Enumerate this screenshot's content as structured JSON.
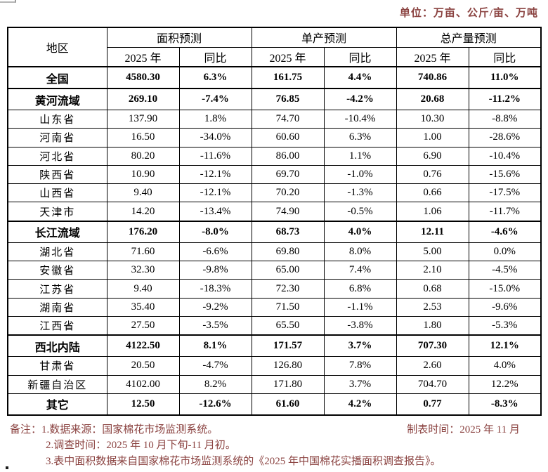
{
  "unit_label": "单位：万亩、公斤/亩、万吨",
  "table": {
    "header": {
      "region_label": "地区",
      "group_labels": [
        "面积预测",
        "单产预测",
        "总产量预测"
      ],
      "sub_labels": [
        "2025 年",
        "同比",
        "2025 年",
        "同比",
        "2025 年",
        "同比"
      ]
    },
    "rows": [
      {
        "region": "全国",
        "values": [
          "4580.30",
          "6.3%",
          "161.75",
          "4.4%",
          "740.86",
          "11.0%"
        ],
        "bold": true,
        "thick_top": false
      },
      {
        "region": "黄河流域",
        "values": [
          "269.10",
          "-7.4%",
          "76.85",
          "-4.2%",
          "20.68",
          "-11.2%"
        ],
        "bold": true,
        "thick_top": true
      },
      {
        "region": "山东省",
        "values": [
          "137.90",
          "1.8%",
          "74.70",
          "-10.4%",
          "10.30",
          "-8.8%"
        ],
        "bold": false,
        "thick_top": false
      },
      {
        "region": "河南省",
        "values": [
          "16.50",
          "-34.0%",
          "60.60",
          "6.3%",
          "1.00",
          "-28.6%"
        ],
        "bold": false,
        "thick_top": false
      },
      {
        "region": "河北省",
        "values": [
          "80.20",
          "-11.6%",
          "86.00",
          "1.1%",
          "6.90",
          "-10.4%"
        ],
        "bold": false,
        "thick_top": false
      },
      {
        "region": "陕西省",
        "values": [
          "10.90",
          "-12.1%",
          "69.70",
          "-1.0%",
          "0.76",
          "-15.6%"
        ],
        "bold": false,
        "thick_top": false
      },
      {
        "region": "山西省",
        "values": [
          "9.40",
          "-12.1%",
          "70.20",
          "-1.3%",
          "0.66",
          "-17.5%"
        ],
        "bold": false,
        "thick_top": false
      },
      {
        "region": "天津市",
        "values": [
          "14.20",
          "-13.4%",
          "74.90",
          "-0.5%",
          "1.06",
          "-11.7%"
        ],
        "bold": false,
        "thick_top": false
      },
      {
        "region": "长江流域",
        "values": [
          "176.20",
          "-8.0%",
          "68.73",
          "4.0%",
          "12.11",
          "-4.6%"
        ],
        "bold": true,
        "thick_top": true
      },
      {
        "region": "湖北省",
        "values": [
          "71.60",
          "-6.6%",
          "69.80",
          "8.0%",
          "5.00",
          "0.0%"
        ],
        "bold": false,
        "thick_top": false
      },
      {
        "region": "安徽省",
        "values": [
          "32.30",
          "-9.8%",
          "65.00",
          "7.4%",
          "2.10",
          "-4.5%"
        ],
        "bold": false,
        "thick_top": false
      },
      {
        "region": "江苏省",
        "values": [
          "9.40",
          "-18.3%",
          "72.30",
          "6.8%",
          "0.68",
          "-15.0%"
        ],
        "bold": false,
        "thick_top": false
      },
      {
        "region": "湖南省",
        "values": [
          "35.40",
          "-9.2%",
          "71.50",
          "-1.1%",
          "2.53",
          "-9.6%"
        ],
        "bold": false,
        "thick_top": false
      },
      {
        "region": "江西省",
        "values": [
          "27.50",
          "-3.5%",
          "65.50",
          "-3.8%",
          "1.80",
          "-5.3%"
        ],
        "bold": false,
        "thick_top": false
      },
      {
        "region": "西北内陆",
        "values": [
          "4122.50",
          "8.1%",
          "171.57",
          "3.7%",
          "707.30",
          "12.1%"
        ],
        "bold": true,
        "thick_top": true
      },
      {
        "region": "甘肃省",
        "values": [
          "20.50",
          "-4.7%",
          "126.80",
          "7.8%",
          "2.60",
          "4.0%"
        ],
        "bold": false,
        "thick_top": false
      },
      {
        "region": "新疆自治区",
        "values": [
          "4102.00",
          "8.2%",
          "171.80",
          "3.7%",
          "704.70",
          "12.2%"
        ],
        "bold": false,
        "thick_top": false
      },
      {
        "region": "其它",
        "values": [
          "12.50",
          "-12.6%",
          "61.60",
          "4.2%",
          "0.77",
          "-8.3%"
        ],
        "bold": true,
        "thick_top": false
      }
    ]
  },
  "footer": {
    "note1": "备注：1.数据来源：国家棉花市场监测系统。",
    "made_time": "制表时间：2025 年 11 月",
    "note2": "2.调查时间：2025 年 10 月下旬-11 月初。",
    "note3": "3.表中面积数据来自国家棉花市场监测系统的《2025 年中国棉花实播面积调查报告》。"
  },
  "colors": {
    "note_red": "#8b4341",
    "table_border": "#000000"
  }
}
